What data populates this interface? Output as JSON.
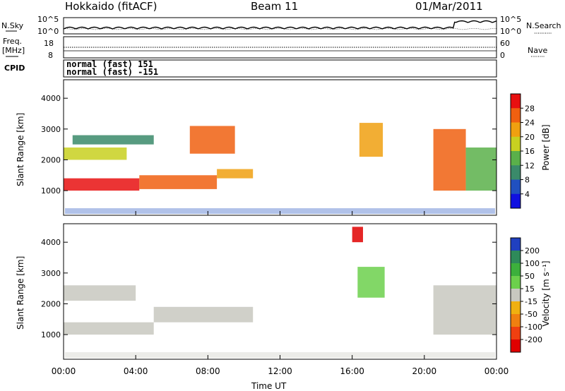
{
  "header": {
    "station": "Hokkaido (fitACF)",
    "beam": "Beam 11",
    "date": "01/Mar/2011"
  },
  "noise_panel": {
    "left_label": "N.Sky",
    "right_label": "N.Search",
    "ticks_left": [
      "10^5",
      "10^0"
    ],
    "ticks_right": [
      "10^5",
      "10^0"
    ]
  },
  "freq_panel": {
    "left_label_line1": "Freq.",
    "left_label_line2": "[MHz]",
    "right_label": "Nave",
    "ticks_left": [
      "18",
      "8"
    ],
    "ticks_right": [
      "60",
      "0"
    ]
  },
  "cpid_panel": {
    "label": "CPID",
    "line1": "normal (fast) 151",
    "line2": "normal (fast) -151"
  },
  "chart_data": [
    {
      "type": "heatmap",
      "panel": "power",
      "ylabel": "Slant Range [km]",
      "xlabel": "Time UT",
      "x_ticks": [
        "00:00",
        "04:00",
        "08:00",
        "12:00",
        "16:00",
        "20:00",
        "00:00"
      ],
      "y_ticks": [
        1000,
        2000,
        3000,
        4000
      ],
      "ylim": [
        200,
        4600
      ],
      "xlim_hours": [
        0,
        24
      ],
      "colorbar": {
        "label": "Power [dB]",
        "ticks": [
          4,
          8,
          12,
          16,
          20,
          24,
          28
        ],
        "range": [
          0,
          30
        ],
        "colors": [
          "#1010e0",
          "#2050c0",
          "#3a8a6a",
          "#5ab04a",
          "#c8d020",
          "#f0a010",
          "#f06010",
          "#e81010"
        ]
      },
      "echo_regions": [
        {
          "t0": 0.0,
          "t1": 4.2,
          "r0": 1000,
          "r1": 1400,
          "level": 28
        },
        {
          "t0": 4.2,
          "t1": 8.5,
          "r0": 1050,
          "r1": 1500,
          "level": 26
        },
        {
          "t0": 8.5,
          "t1": 10.5,
          "r0": 1400,
          "r1": 1700,
          "level": 20
        },
        {
          "t0": 0.0,
          "t1": 3.5,
          "r0": 2000,
          "r1": 2400,
          "level": 18
        },
        {
          "t0": 0.5,
          "t1": 5.0,
          "r0": 2500,
          "r1": 2800,
          "level": 10
        },
        {
          "t0": 7.0,
          "t1": 9.5,
          "r0": 2200,
          "r1": 3100,
          "level": 24
        },
        {
          "t0": 16.4,
          "t1": 17.7,
          "r0": 2100,
          "r1": 3200,
          "level": 22
        },
        {
          "t0": 20.5,
          "t1": 22.3,
          "r0": 1000,
          "r1": 3000,
          "level": 24
        },
        {
          "t0": 22.3,
          "t1": 24.0,
          "r0": 1000,
          "r1": 2400,
          "level": 12
        }
      ]
    },
    {
      "type": "heatmap",
      "panel": "velocity",
      "ylabel": "Slant Range [km]",
      "xlabel": "Time UT",
      "x_ticks": [
        "00:00",
        "04:00",
        "08:00",
        "12:00",
        "16:00",
        "20:00",
        "00:00"
      ],
      "y_ticks": [
        1000,
        2000,
        3000,
        4000
      ],
      "ylim": [
        200,
        4600
      ],
      "xlim_hours": [
        0,
        24
      ],
      "colorbar": {
        "label": "Velocity [m s⁻¹]",
        "ticks": [
          200,
          100,
          50,
          15,
          -15,
          -50,
          -100,
          -200
        ],
        "range": [
          -250,
          250
        ],
        "colors": [
          "#2040c0",
          "#2e8a5a",
          "#3cb03c",
          "#6cd04c",
          "#c8c8c0",
          "#f0b010",
          "#f08010",
          "#f04010",
          "#e00000"
        ]
      },
      "echo_regions": [
        {
          "t0": 0.0,
          "t1": 5.0,
          "r0": 1000,
          "r1": 1400,
          "level": 0
        },
        {
          "t0": 5.0,
          "t1": 10.5,
          "r0": 1400,
          "r1": 1900,
          "level": 0
        },
        {
          "t0": 0.0,
          "t1": 4.0,
          "r0": 2100,
          "r1": 2600,
          "level": 0
        },
        {
          "t0": 16.3,
          "t1": 17.8,
          "r0": 2200,
          "r1": 3200,
          "level": 40
        },
        {
          "t0": 20.5,
          "t1": 24.0,
          "r0": 1000,
          "r1": 2600,
          "level": 0
        },
        {
          "t0": 16.0,
          "t1": 16.6,
          "r0": 4000,
          "r1": 4500,
          "level": -200
        }
      ]
    }
  ]
}
